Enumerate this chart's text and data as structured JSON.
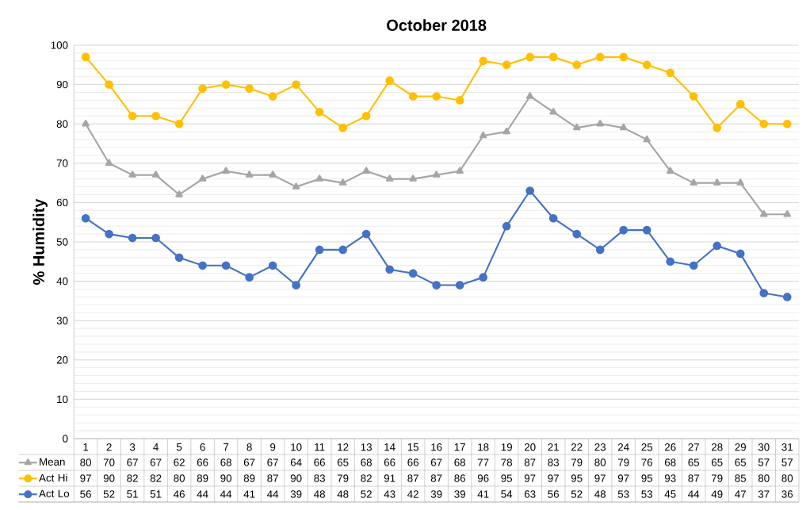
{
  "chart_data": {
    "type": "line",
    "title": "October 2018",
    "ylabel": "% Humidity",
    "categories": [
      "1",
      "2",
      "3",
      "4",
      "5",
      "6",
      "7",
      "8",
      "9",
      "10",
      "11",
      "12",
      "13",
      "14",
      "15",
      "16",
      "17",
      "18",
      "19",
      "20",
      "21",
      "22",
      "23",
      "24",
      "25",
      "26",
      "27",
      "28",
      "29",
      "30",
      "31"
    ],
    "series": [
      {
        "name": "Mean",
        "color": "#a5a5a5",
        "marker": "triangle",
        "values": [
          80,
          70,
          67,
          67,
          62,
          66,
          68,
          67,
          67,
          64,
          66,
          65,
          68,
          66,
          66,
          67,
          68,
          77,
          78,
          87,
          83,
          79,
          80,
          79,
          76,
          68,
          65,
          65,
          65,
          57,
          57
        ]
      },
      {
        "name": "Act Hi",
        "color": "#ffc000",
        "marker": "circle",
        "values": [
          97,
          90,
          82,
          82,
          80,
          89,
          90,
          89,
          87,
          90,
          83,
          79,
          82,
          91,
          87,
          87,
          86,
          96,
          95,
          97,
          97,
          95,
          97,
          97,
          95,
          93,
          87,
          79,
          85,
          80,
          80
        ]
      },
      {
        "name": "Act Lo",
        "color": "#4472c4",
        "marker": "circle",
        "values": [
          56,
          52,
          51,
          51,
          46,
          44,
          44,
          41,
          44,
          39,
          48,
          48,
          52,
          43,
          42,
          39,
          39,
          41,
          54,
          63,
          56,
          52,
          48,
          53,
          53,
          45,
          44,
          49,
          47,
          37,
          36
        ]
      }
    ],
    "ylim": [
      0,
      100
    ],
    "yticks": [
      0,
      10,
      20,
      30,
      40,
      50,
      60,
      70,
      80,
      90,
      100
    ],
    "grid": "y",
    "legend": "bottom",
    "data_labels": true
  }
}
